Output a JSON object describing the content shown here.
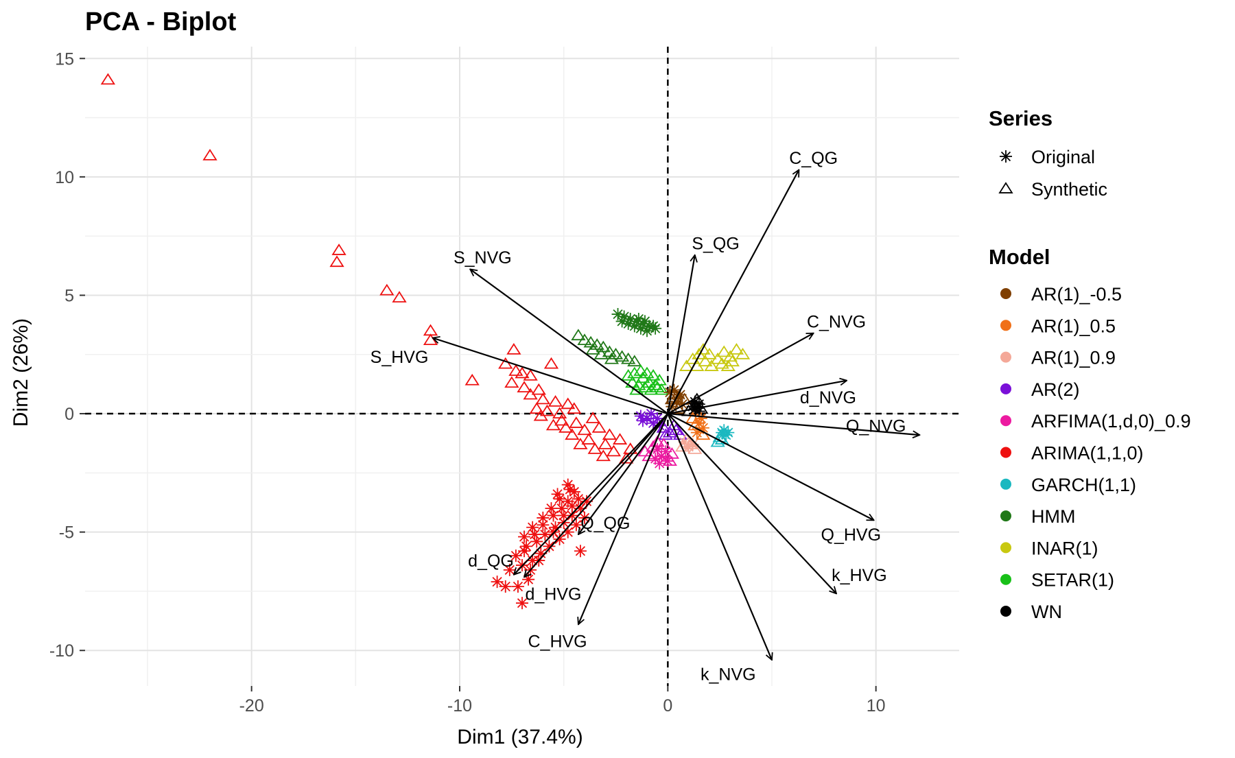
{
  "chart_data": {
    "type": "scatter",
    "title": "PCA - Biplot",
    "xlabel": "Dim1 (37.4%)",
    "ylabel": "Dim2 (26%)",
    "xlim": [
      -28,
      14
    ],
    "ylim": [
      -11.5,
      15.5
    ],
    "x_ticks": [
      -20,
      -10,
      0,
      10
    ],
    "y_ticks": [
      15,
      10,
      5,
      0,
      -5,
      -10
    ],
    "grid": true,
    "reference_lines": {
      "x": 0,
      "y": 0,
      "style": "dashed"
    },
    "legend_placement": "right",
    "legend": {
      "series_title": "Series",
      "series": [
        {
          "label": "Original",
          "shape": "asterisk"
        },
        {
          "label": "Synthetic",
          "shape": "triangle"
        }
      ],
      "model_title": "Model",
      "models": [
        {
          "label": "AR(1)_-0.5",
          "color": "#7f3f00"
        },
        {
          "label": "AR(1)_0.5",
          "color": "#f07018"
        },
        {
          "label": "AR(1)_0.9",
          "color": "#f4a898"
        },
        {
          "label": "AR(2)",
          "color": "#7a10d8"
        },
        {
          "label": "ARFIMA(1,d,0)_0.9",
          "color": "#ec1aa0"
        },
        {
          "label": "ARIMA(1,1,0)",
          "color": "#ee1010"
        },
        {
          "label": "GARCH(1,1)",
          "color": "#1ab8c0"
        },
        {
          "label": "HMM",
          "color": "#207818"
        },
        {
          "label": "INAR(1)",
          "color": "#c8c810"
        },
        {
          "label": "SETAR(1)",
          "color": "#18c018"
        },
        {
          "label": "WN",
          "color": "#000000"
        }
      ]
    },
    "vectors": [
      {
        "label": "C_QG",
        "x": 6.3,
        "y": 10.3,
        "label_x": 7.0,
        "label_y": 10.8
      },
      {
        "label": "S_QG",
        "x": 1.3,
        "y": 6.7,
        "label_x": 2.3,
        "label_y": 7.2
      },
      {
        "label": "S_NVG",
        "x": -9.5,
        "y": 6.1,
        "label_x": -8.9,
        "label_y": 6.6
      },
      {
        "label": "C_NVG",
        "x": 7.0,
        "y": 3.4,
        "label_x": 8.1,
        "label_y": 3.9
      },
      {
        "label": "S_HVG",
        "x": -11.3,
        "y": 3.2,
        "label_x": -12.9,
        "label_y": 2.4
      },
      {
        "label": "d_NVG",
        "x": 8.6,
        "y": 1.4,
        "label_x": 7.7,
        "label_y": 0.7
      },
      {
        "label": "Q_NVG",
        "x": 12.1,
        "y": -0.9,
        "label_x": 10.0,
        "label_y": -0.5
      },
      {
        "label": "Q_HVG",
        "x": 9.9,
        "y": -4.5,
        "label_x": 8.8,
        "label_y": -5.1
      },
      {
        "label": "k_HVG",
        "x": 8.1,
        "y": -7.6,
        "label_x": 9.2,
        "label_y": -6.8
      },
      {
        "label": "Q_QG",
        "x": -4.3,
        "y": -5.1,
        "label_x": -3.0,
        "label_y": -4.6
      },
      {
        "label": "d_QG",
        "x": -7.4,
        "y": -6.8,
        "label_x": -8.5,
        "label_y": -6.2
      },
      {
        "label": "d_HVG",
        "x": -6.9,
        "y": -6.9,
        "label_x": -5.5,
        "label_y": -7.6
      },
      {
        "label": "C_HVG",
        "x": -4.3,
        "y": -8.9,
        "label_x": -5.3,
        "label_y": -9.6
      },
      {
        "label": "k_NVG",
        "x": 5.0,
        "y": -10.4,
        "label_x": 2.9,
        "label_y": -11.0
      }
    ],
    "points": {
      "ARIMA(1,1,0)": {
        "synthetic": [
          [
            -26.9,
            14.1
          ],
          [
            -22.0,
            10.9
          ],
          [
            -15.8,
            6.9
          ],
          [
            -15.9,
            6.4
          ],
          [
            -13.5,
            5.2
          ],
          [
            -12.9,
            4.9
          ],
          [
            -11.4,
            3.5
          ],
          [
            -11.4,
            3.1
          ],
          [
            -9.4,
            1.4
          ],
          [
            -7.4,
            2.7
          ],
          [
            -7.8,
            2.1
          ],
          [
            -7.3,
            1.8
          ],
          [
            -7.0,
            1.7
          ],
          [
            -6.6,
            1.6
          ],
          [
            -5.6,
            2.1
          ],
          [
            -7.5,
            1.3
          ],
          [
            -6.9,
            1.1
          ],
          [
            -6.2,
            1.0
          ],
          [
            -6.6,
            0.8
          ],
          [
            -6.0,
            0.6
          ],
          [
            -5.4,
            0.5
          ],
          [
            -4.8,
            0.4
          ],
          [
            -6.3,
            0.2
          ],
          [
            -5.8,
            0.1
          ],
          [
            -5.2,
            0.0
          ],
          [
            -4.5,
            0.2
          ],
          [
            -6.1,
            -0.1
          ],
          [
            -5.1,
            -0.3
          ],
          [
            -4.4,
            -0.4
          ],
          [
            -3.6,
            -0.2
          ],
          [
            -5.5,
            -0.5
          ],
          [
            -4.9,
            -0.6
          ],
          [
            -4.0,
            -0.7
          ],
          [
            -3.3,
            -0.6
          ],
          [
            -2.8,
            -0.9
          ],
          [
            -4.6,
            -0.9
          ],
          [
            -3.8,
            -1.1
          ],
          [
            -3.0,
            -1.3
          ],
          [
            -2.3,
            -1.1
          ],
          [
            -4.2,
            -1.3
          ],
          [
            -3.5,
            -1.5
          ],
          [
            -2.6,
            -1.6
          ],
          [
            -1.8,
            -1.5
          ],
          [
            -2.0,
            -1.9
          ],
          [
            -3.1,
            -1.8
          ]
        ],
        "original": [
          [
            -7.0,
            -8.0
          ],
          [
            -7.8,
            -7.3
          ],
          [
            -8.2,
            -7.1
          ],
          [
            -7.2,
            -7.3
          ],
          [
            -6.7,
            -7.0
          ],
          [
            -7.6,
            -6.6
          ],
          [
            -7.0,
            -6.4
          ],
          [
            -6.5,
            -6.2
          ],
          [
            -6.1,
            -5.9
          ],
          [
            -5.7,
            -5.6
          ],
          [
            -5.2,
            -5.3
          ],
          [
            -4.8,
            -5.0
          ],
          [
            -4.4,
            -4.7
          ],
          [
            -4.0,
            -4.4
          ],
          [
            -5.5,
            -5.0
          ],
          [
            -5.0,
            -4.6
          ],
          [
            -4.6,
            -4.3
          ],
          [
            -4.2,
            -4.0
          ],
          [
            -3.9,
            -3.7
          ],
          [
            -6.3,
            -5.4
          ],
          [
            -5.9,
            -5.1
          ],
          [
            -5.4,
            -4.8
          ],
          [
            -5.0,
            -4.3
          ],
          [
            -4.6,
            -3.9
          ],
          [
            -4.3,
            -3.6
          ],
          [
            -6.8,
            -5.6
          ],
          [
            -6.4,
            -5.1
          ],
          [
            -6.0,
            -4.7
          ],
          [
            -5.5,
            -4.3
          ],
          [
            -5.1,
            -4.0
          ],
          [
            -4.8,
            -3.7
          ],
          [
            -4.5,
            -3.3
          ],
          [
            -6.9,
            -5.2
          ],
          [
            -6.5,
            -4.8
          ],
          [
            -6.0,
            -4.4
          ],
          [
            -5.6,
            -4.0
          ],
          [
            -5.2,
            -3.6
          ],
          [
            -4.7,
            -3.2
          ],
          [
            -6.6,
            -6.6
          ],
          [
            -6.2,
            -6.2
          ],
          [
            -7.3,
            -6.0
          ],
          [
            -6.9,
            -5.8
          ],
          [
            -4.2,
            -5.8
          ],
          [
            -4.8,
            -3.0
          ],
          [
            -5.3,
            -3.4
          ]
        ]
      },
      "HMM": {
        "original": [
          [
            -2.4,
            4.2
          ],
          [
            -2.1,
            4.1
          ],
          [
            -1.8,
            4.0
          ],
          [
            -1.5,
            3.9
          ],
          [
            -1.2,
            3.8
          ],
          [
            -0.9,
            3.7
          ],
          [
            -0.6,
            3.6
          ],
          [
            -2.2,
            3.9
          ],
          [
            -1.9,
            3.8
          ],
          [
            -1.6,
            3.7
          ],
          [
            -1.3,
            3.6
          ],
          [
            -1.0,
            3.5
          ],
          [
            -0.7,
            3.7
          ],
          [
            -1.4,
            4.0
          ],
          [
            -1.1,
            3.9
          ]
        ],
        "synthetic": [
          [
            -4.3,
            3.3
          ],
          [
            -4.0,
            3.1
          ],
          [
            -3.7,
            3.0
          ],
          [
            -3.4,
            2.9
          ],
          [
            -3.1,
            2.8
          ],
          [
            -2.8,
            2.6
          ],
          [
            -2.5,
            2.5
          ],
          [
            -2.2,
            2.4
          ],
          [
            -1.9,
            2.3
          ],
          [
            -3.6,
            2.7
          ],
          [
            -3.2,
            2.5
          ],
          [
            -2.7,
            2.3
          ],
          [
            -1.6,
            2.2
          ]
        ]
      },
      "SETAR(1)": {
        "synthetic": [
          [
            -1.9,
            1.6
          ],
          [
            -1.6,
            1.7
          ],
          [
            -1.3,
            1.8
          ],
          [
            -1.0,
            1.7
          ],
          [
            -0.7,
            1.6
          ],
          [
            -0.4,
            1.4
          ],
          [
            -1.7,
            1.3
          ],
          [
            -1.4,
            1.2
          ],
          [
            -1.1,
            1.1
          ],
          [
            -0.8,
            1.0
          ],
          [
            -0.5,
            1.1
          ],
          [
            -1.2,
            1.5
          ],
          [
            -0.9,
            1.3
          ],
          [
            -0.6,
            1.2
          ],
          [
            -0.3,
            1.0
          ],
          [
            -1.5,
            1.0
          ]
        ]
      },
      "INAR(1)": {
        "synthetic": [
          [
            0.9,
            2.0
          ],
          [
            1.2,
            2.3
          ],
          [
            1.5,
            2.5
          ],
          [
            1.8,
            2.2
          ],
          [
            2.1,
            2.0
          ],
          [
            2.4,
            2.3
          ],
          [
            2.7,
            2.6
          ],
          [
            3.0,
            2.4
          ],
          [
            3.3,
            2.7
          ],
          [
            3.6,
            2.5
          ],
          [
            1.4,
            2.0
          ],
          [
            2.0,
            2.5
          ],
          [
            2.6,
            2.1
          ],
          [
            3.1,
            2.2
          ],
          [
            1.7,
            2.7
          ],
          [
            2.9,
            2.0
          ]
        ]
      },
      "AR(1)_-0.5": {
        "original": [
          [
            0.1,
            0.9
          ],
          [
            0.3,
            1.0
          ],
          [
            0.6,
            0.8
          ],
          [
            0.4,
            0.5
          ],
          [
            0.2,
            0.3
          ],
          [
            0.7,
            0.4
          ],
          [
            0.5,
            0.7
          ]
        ],
        "synthetic": [
          [
            0.2,
            0.6
          ],
          [
            0.5,
            0.2
          ],
          [
            0.8,
            0.6
          ],
          [
            0.3,
            0.8
          ]
        ]
      },
      "WN": {
        "original": [
          [
            1.3,
            0.5
          ],
          [
            1.4,
            0.3
          ],
          [
            1.5,
            0.4
          ],
          [
            1.3,
            0.2
          ],
          [
            1.5,
            0.1
          ],
          [
            1.2,
            0.3
          ]
        ],
        "synthetic": [
          [
            1.0,
            0.1
          ],
          [
            1.4,
            0.6
          ],
          [
            1.6,
            0.2
          ]
        ]
      },
      "AR(1)_0.5": {
        "original": [
          [
            1.5,
            -0.4
          ],
          [
            1.7,
            -0.6
          ],
          [
            1.4,
            -0.8
          ],
          [
            1.6,
            -0.2
          ]
        ],
        "synthetic": [
          [
            1.3,
            -0.5
          ],
          [
            1.7,
            -0.9
          ],
          [
            1.2,
            -0.2
          ]
        ]
      },
      "AR(2)": {
        "original": [
          [
            -1.3,
            -0.1
          ],
          [
            -1.0,
            -0.2
          ],
          [
            -0.7,
            -0.4
          ],
          [
            -0.4,
            -0.5
          ],
          [
            -1.2,
            -0.3
          ],
          [
            -0.8,
            0.0
          ],
          [
            -0.5,
            -0.2
          ]
        ],
        "synthetic": [
          [
            -0.2,
            -0.6
          ],
          [
            0.1,
            -0.8
          ],
          [
            0.4,
            -0.7
          ],
          [
            0.6,
            -0.9
          ],
          [
            -0.1,
            -0.9
          ],
          [
            0.3,
            -0.5
          ]
        ]
      },
      "AR(1)_0.9": {
        "original": [
          [
            0.8,
            -1.2
          ],
          [
            1.0,
            -1.4
          ],
          [
            1.2,
            -1.3
          ]
        ],
        "synthetic": [
          [
            1.1,
            -1.3
          ],
          [
            1.3,
            -1.5
          ],
          [
            0.9,
            -1.1
          ],
          [
            0.7,
            -1.4
          ]
        ]
      },
      "ARFIMA(1,d,0)_0.9": {
        "original": [
          [
            -0.5,
            -1.5
          ],
          [
            -0.3,
            -1.8
          ],
          [
            0.0,
            -2.0
          ],
          [
            -0.4,
            -2.1
          ],
          [
            -0.1,
            -1.6
          ],
          [
            -0.6,
            -1.9
          ]
        ],
        "synthetic": [
          [
            -1.1,
            -1.6
          ],
          [
            -0.7,
            -1.4
          ],
          [
            -0.2,
            -1.3
          ],
          [
            0.2,
            -1.7
          ],
          [
            -0.9,
            -1.8
          ],
          [
            0.1,
            -2.0
          ],
          [
            -0.5,
            -1.2
          ]
        ]
      },
      "GARCH(1,1)": {
        "original": [
          [
            2.6,
            -0.8
          ],
          [
            2.8,
            -0.9
          ],
          [
            2.9,
            -0.8
          ],
          [
            2.7,
            -0.7
          ]
        ],
        "synthetic": [
          [
            2.5,
            -1.0
          ],
          [
            2.6,
            -1.1
          ],
          [
            2.4,
            -1.2
          ]
        ]
      }
    }
  }
}
